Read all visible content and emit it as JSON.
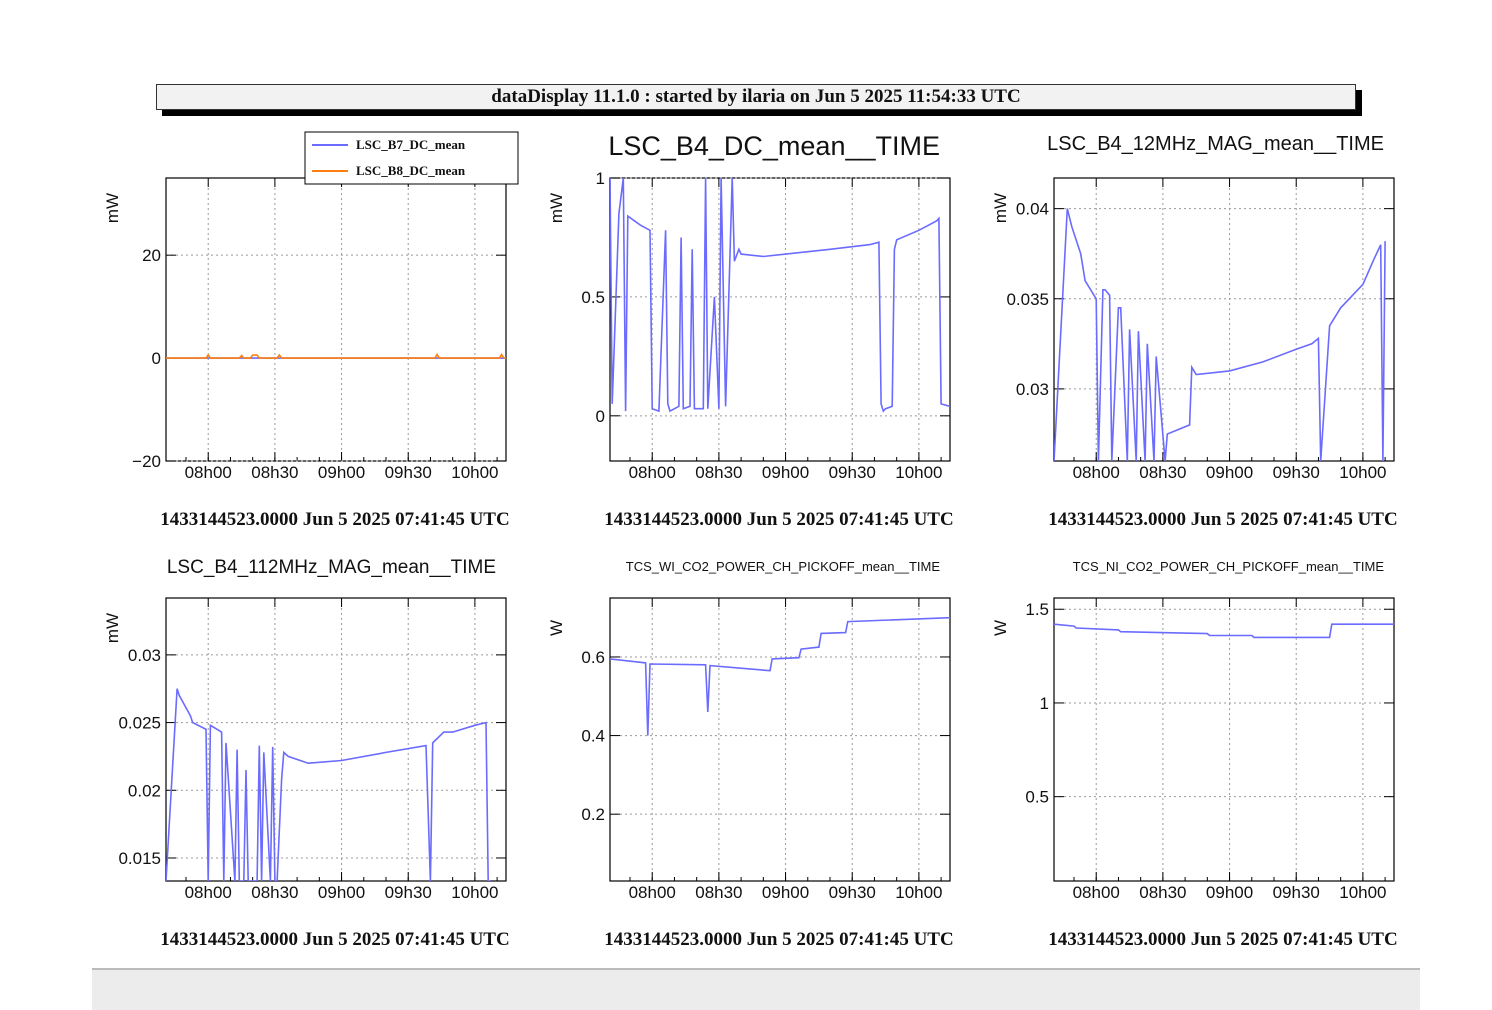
{
  "banner": "dataDisplay 11.1.0 : started by ilaria on Jun  5 2025 11:54:33 UTC",
  "colors": {
    "blue": "#6b6bff",
    "orange": "#ff7f0e",
    "grid": "#9a9a9a"
  },
  "chart_data": [
    {
      "type": "line",
      "title": "",
      "ylabel": "mW",
      "xlabel": "1433144523.0000 Jun 5 2025 07:41:45 UTC",
      "x_ticks": [
        "08h00",
        "08h30",
        "09h00",
        "09h30",
        "10h00"
      ],
      "y_ticks": [
        {
          "v": -20,
          "t": "−20"
        },
        {
          "v": 0,
          "t": "0"
        },
        {
          "v": 20,
          "t": "20"
        }
      ],
      "ylim": [
        -20,
        35
      ],
      "legend": {
        "placement": "top",
        "entries": [
          {
            "name": "LSC_B7_DC_mean",
            "color": "#6b6bff"
          },
          {
            "name": "LSC_B8_DC_mean",
            "color": "#ff7f0e"
          }
        ]
      },
      "series": [
        {
          "name": "LSC_B7_DC_mean",
          "color": "#6b6bff",
          "x": [
            "07:41",
            "10:14"
          ],
          "y": [
            0,
            0
          ]
        },
        {
          "name": "LSC_B8_DC_mean",
          "color": "#ff7f0e",
          "x": [
            "07:41",
            "07:59",
            "08:00",
            "08:01",
            "08:14",
            "08:15",
            "08:16",
            "08:19",
            "08:20",
            "08:22",
            "08:23",
            "08:31",
            "08:32",
            "08:33",
            "09:42",
            "09:43",
            "09:44",
            "10:11",
            "10:12",
            "10:13",
            "10:14"
          ],
          "y": [
            0,
            0,
            0.6,
            0,
            0,
            0.5,
            0,
            0,
            0.6,
            0.6,
            0,
            0,
            0.6,
            0,
            0,
            0.7,
            0,
            0,
            0.7,
            0,
            0
          ]
        }
      ],
      "grid": true
    },
    {
      "type": "line",
      "title": "LSC_B4_DC_mean__TIME",
      "ylabel": "mW",
      "xlabel": "1433144523.0000 Jun 5 2025 07:41:45 UTC",
      "x_ticks": [
        "08h00",
        "08h30",
        "09h00",
        "09h30",
        "10h00"
      ],
      "y_ticks": [
        {
          "v": 0,
          "t": "0"
        },
        {
          "v": 0.5,
          "t": "0.5"
        },
        {
          "v": 1,
          "t": "1"
        }
      ],
      "ylim": [
        -0.19,
        1
      ],
      "series": [
        {
          "name": "",
          "color": "#6b6bff",
          "x": [
            "07:41",
            "07:42",
            "07:45",
            "07:47",
            "07:48",
            "07:49",
            "07:55",
            "07:59",
            "08:00",
            "08:03",
            "08:06",
            "08:07",
            "08:08",
            "08:12",
            "08:13",
            "08:14",
            "08:17",
            "08:18",
            "08:19",
            "08:23",
            "08:24",
            "08:25",
            "08:28",
            "08:30",
            "08:31",
            "08:33",
            "08:36",
            "08:37",
            "08:39",
            "08:40",
            "08:50",
            "09:10",
            "09:20",
            "09:38",
            "09:42",
            "09:43",
            "09:44",
            "09:45",
            "09:48",
            "09:49",
            "09:50",
            "10:00",
            "10:08",
            "10:09",
            "10:10",
            "10:14"
          ],
          "y": [
            1,
            0.05,
            0.85,
            1,
            0.02,
            0.84,
            0.8,
            0.78,
            0.03,
            0.02,
            0.78,
            0.05,
            0.02,
            0.04,
            0.75,
            0.03,
            0.04,
            0.7,
            0.03,
            0.03,
            1,
            0.03,
            0.5,
            0.03,
            1,
            0.04,
            1,
            0.65,
            0.7,
            0.68,
            0.67,
            0.69,
            0.7,
            0.72,
            0.73,
            0.05,
            0.02,
            0.03,
            0.04,
            0.7,
            0.74,
            0.78,
            0.82,
            0.83,
            0.05,
            0.04
          ]
        }
      ],
      "grid": true
    },
    {
      "type": "line",
      "title": "LSC_B4_12MHz_MAG_mean__TIME",
      "ylabel": "mW",
      "xlabel": "1433144523.0000 Jun 5 2025 07:41:45 UTC",
      "x_ticks": [
        "08h00",
        "08h30",
        "09h00",
        "09h30",
        "10h00"
      ],
      "y_ticks": [
        {
          "v": 0.03,
          "t": "0.03"
        },
        {
          "v": 0.035,
          "t": "0.035"
        },
        {
          "v": 0.04,
          "t": "0.04"
        }
      ],
      "ylim": [
        0.026,
        0.0417
      ],
      "series": [
        {
          "name": "",
          "color": "#6b6bff",
          "x": [
            "07:41",
            "07:47",
            "07:49",
            "07:53",
            "07:55",
            "08:00",
            "08:01",
            "08:03",
            "08:04",
            "08:06",
            "08:07",
            "08:10",
            "08:11",
            "08:14",
            "08:15",
            "08:18",
            "08:19",
            "08:22",
            "08:23",
            "08:26",
            "08:27",
            "08:31",
            "08:32",
            "08:42",
            "08:43",
            "08:45",
            "09:00",
            "09:15",
            "09:30",
            "09:37",
            "09:40",
            "09:41",
            "09:45",
            "09:50",
            "10:00",
            "10:05",
            "10:08",
            "10:09",
            "10:10"
          ],
          "y": [
            0.026,
            0.04,
            0.039,
            0.0375,
            0.036,
            0.035,
            0.026,
            0.0355,
            0.0355,
            0.0352,
            0.026,
            0.0345,
            0.0345,
            0.026,
            0.0333,
            0.026,
            0.0332,
            0.026,
            0.0325,
            0.026,
            0.0318,
            0.026,
            0.0275,
            0.028,
            0.0312,
            0.0308,
            0.031,
            0.0315,
            0.0322,
            0.0325,
            0.0328,
            0.026,
            0.0335,
            0.0345,
            0.0358,
            0.0372,
            0.038,
            0.026,
            0.0382
          ]
        }
      ],
      "grid": true
    },
    {
      "type": "line",
      "title": "LSC_B4_112MHz_MAG_mean__TIME",
      "ylabel": "mW",
      "xlabel": "1433144523.0000 Jun 5 2025 07:41:45 UTC",
      "x_ticks": [
        "08h00",
        "08h30",
        "09h00",
        "09h30",
        "10h00"
      ],
      "y_ticks": [
        {
          "v": 0.015,
          "t": "0.015"
        },
        {
          "v": 0.02,
          "t": "0.02"
        },
        {
          "v": 0.025,
          "t": "0.025"
        },
        {
          "v": 0.03,
          "t": "0.03"
        }
      ],
      "ylim": [
        0.0133,
        0.0342
      ],
      "series": [
        {
          "name": "",
          "color": "#6b6bff",
          "x": [
            "07:41",
            "07:46",
            "07:47",
            "07:52",
            "07:53",
            "07:59",
            "08:00",
            "08:01",
            "08:06",
            "08:07",
            "08:08",
            "08:12",
            "08:13",
            "08:14",
            "08:16",
            "08:17",
            "08:18",
            "08:22",
            "08:23",
            "08:24",
            "08:25",
            "08:28",
            "08:29",
            "08:30",
            "08:31",
            "08:33",
            "08:34",
            "08:36",
            "08:45",
            "09:00",
            "09:20",
            "09:38",
            "09:40",
            "09:41",
            "09:46",
            "09:50",
            "10:00",
            "10:05",
            "10:06",
            "10:07"
          ],
          "y": [
            0.0133,
            0.0275,
            0.027,
            0.0255,
            0.025,
            0.0245,
            0.0133,
            0.0248,
            0.0243,
            0.0133,
            0.0235,
            0.0133,
            0.023,
            0.0133,
            0.0133,
            0.0215,
            0.0133,
            0.0133,
            0.0233,
            0.0133,
            0.0228,
            0.0133,
            0.0232,
            0.0133,
            0.0133,
            0.0208,
            0.0228,
            0.0225,
            0.022,
            0.0222,
            0.0228,
            0.0233,
            0.0133,
            0.0235,
            0.0243,
            0.0243,
            0.0248,
            0.025,
            0.0133,
            0.0133
          ]
        }
      ],
      "grid": true
    },
    {
      "type": "line",
      "title": "TCS_WI_CO2_POWER_CH_PICKOFF_mean__TIME",
      "ylabel": "W",
      "xlabel": "1433144523.0000 Jun 5 2025 07:41:45 UTC",
      "x_ticks": [
        "08h00",
        "08h30",
        "09h00",
        "09h30",
        "10h00"
      ],
      "y_ticks": [
        {
          "v": 0.2,
          "t": "0.2"
        },
        {
          "v": 0.4,
          "t": "0.4"
        },
        {
          "v": 0.6,
          "t": "0.6"
        }
      ],
      "ylim": [
        0.03,
        0.75
      ],
      "series": [
        {
          "name": "",
          "color": "#6b6bff",
          "x": [
            "07:41",
            "07:57",
            "07:58",
            "07:59",
            "08:24",
            "08:25",
            "08:26",
            "08:53",
            "08:54",
            "09:06",
            "09:07",
            "09:15",
            "09:16",
            "09:27",
            "09:28",
            "10:14"
          ],
          "y": [
            0.595,
            0.585,
            0.4,
            0.582,
            0.58,
            0.46,
            0.578,
            0.565,
            0.595,
            0.598,
            0.62,
            0.625,
            0.66,
            0.662,
            0.69,
            0.7
          ]
        }
      ],
      "grid": true
    },
    {
      "type": "line",
      "title": "TCS_NI_CO2_POWER_CH_PICKOFF_mean__TIME",
      "ylabel": "W",
      "xlabel": "1433144523.0000 Jun 5 2025 07:41:45 UTC",
      "x_ticks": [
        "08h00",
        "08h30",
        "09h00",
        "09h30",
        "10h00"
      ],
      "y_ticks": [
        {
          "v": 0.5,
          "t": "0.5"
        },
        {
          "v": 1,
          "t": "1"
        },
        {
          "v": 1.5,
          "t": "1.5"
        }
      ],
      "ylim": [
        0.05,
        1.56
      ],
      "series": [
        {
          "name": "",
          "color": "#6b6bff",
          "x": [
            "07:41",
            "07:50",
            "07:51",
            "08:10",
            "08:11",
            "08:50",
            "08:51",
            "09:10",
            "09:11",
            "09:45",
            "09:46",
            "10:14"
          ],
          "y": [
            1.42,
            1.41,
            1.4,
            1.39,
            1.38,
            1.37,
            1.36,
            1.36,
            1.35,
            1.35,
            1.42,
            1.42
          ]
        }
      ],
      "grid": true
    }
  ]
}
